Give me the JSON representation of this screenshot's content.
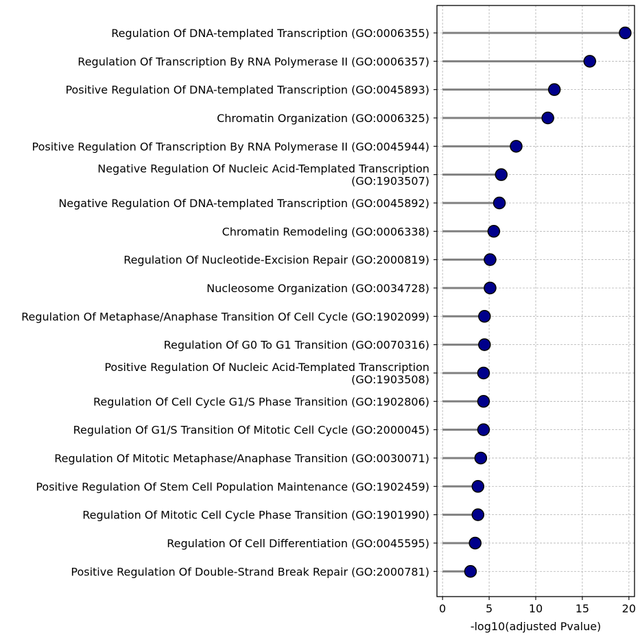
{
  "chart_data": {
    "type": "lollipop",
    "xlabel": "-log10(adjusted Pvalue)",
    "ylabel": "",
    "title": "",
    "xlim": [
      -0.6,
      20.6
    ],
    "xticks": [
      0,
      5,
      10,
      15,
      20
    ],
    "grid": true,
    "legend": "none",
    "colors": {
      "marker_fill": "#00008b",
      "marker_edge": "#000000",
      "stem": "#808080",
      "grid": "#b0b0b0"
    },
    "categories": [
      "Regulation Of DNA-templated Transcription (GO:0006355)",
      "Regulation Of Transcription By RNA Polymerase II (GO:0006357)",
      "Positive Regulation Of DNA-templated Transcription (GO:0045893)",
      "Chromatin Organization (GO:0006325)",
      "Positive Regulation Of Transcription By RNA Polymerase II (GO:0045944)",
      "Negative Regulation Of Nucleic Acid-Templated Transcription\n(GO:1903507)",
      "Negative Regulation Of DNA-templated Transcription (GO:0045892)",
      "Chromatin Remodeling (GO:0006338)",
      "Regulation Of Nucleotide-Excision Repair (GO:2000819)",
      "Nucleosome Organization (GO:0034728)",
      "Regulation Of Metaphase/Anaphase Transition Of Cell Cycle (GO:1902099)",
      "Regulation Of G0 To G1 Transition (GO:0070316)",
      "Positive Regulation Of Nucleic Acid-Templated Transcription\n(GO:1903508)",
      "Regulation Of Cell Cycle G1/S Phase Transition (GO:1902806)",
      "Regulation Of G1/S Transition Of Mitotic Cell Cycle (GO:2000045)",
      "Regulation Of Mitotic Metaphase/Anaphase Transition (GO:0030071)",
      "Positive Regulation Of Stem Cell Population Maintenance (GO:1902459)",
      "Regulation Of Mitotic Cell Cycle Phase Transition (GO:1901990)",
      "Regulation Of Cell Differentiation (GO:0045595)",
      "Positive Regulation Of Double-Strand Break Repair (GO:2000781)"
    ],
    "values": [
      19.6,
      15.8,
      12.0,
      11.3,
      7.9,
      6.3,
      6.1,
      5.5,
      5.1,
      5.1,
      4.5,
      4.5,
      4.4,
      4.4,
      4.4,
      4.1,
      3.8,
      3.8,
      3.5,
      3.0
    ]
  }
}
